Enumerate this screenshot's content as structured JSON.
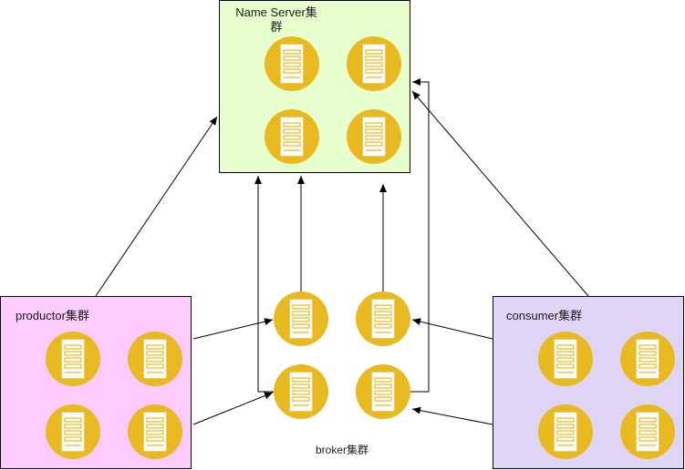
{
  "clusters": {
    "nameserver": {
      "label": "Name Server集群",
      "fill": "#e6ffcc"
    },
    "producer": {
      "label": "productor集群",
      "fill": "#ffccff"
    },
    "consumer": {
      "label": "consumer集群",
      "fill": "#e1d5f7"
    },
    "broker": {
      "label": "broker集群"
    }
  },
  "colors": {
    "server_fill": "#e8b920",
    "server_icon_fill": "#ffffff",
    "server_icon_stroke": "#e8b920",
    "edge": "#000000"
  },
  "icons": {
    "server": "server-icon"
  }
}
